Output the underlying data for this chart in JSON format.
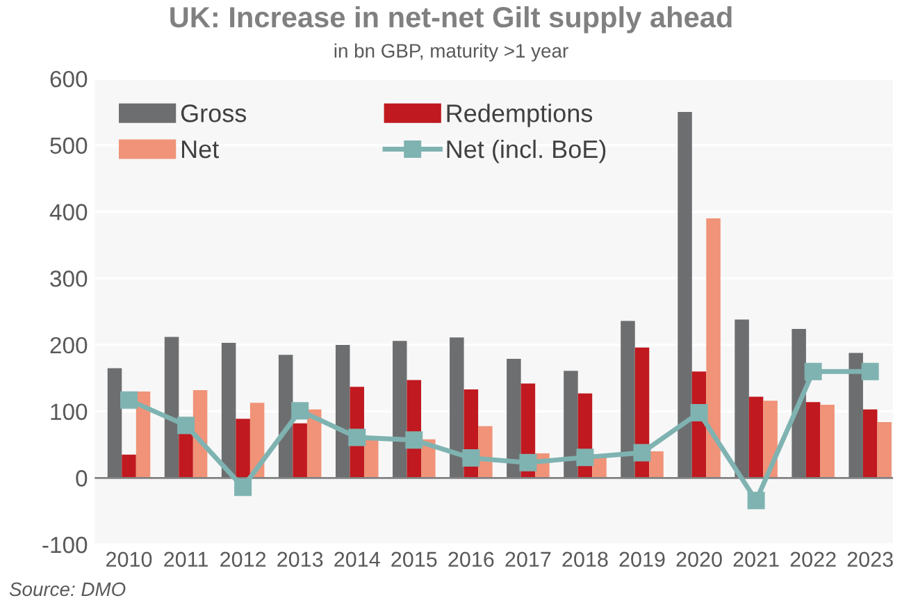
{
  "chart_data": {
    "type": "bar",
    "title": "UK: Increase in net-net Gilt supply ahead",
    "subtitle": "in bn GBP, maturity >1 year",
    "categories": [
      "2010",
      "2011",
      "2012",
      "2013",
      "2014",
      "2015",
      "2016",
      "2017",
      "2018",
      "2019",
      "2020",
      "2021",
      "2022",
      "2023"
    ],
    "series": [
      {
        "name": "Gross",
        "color": "#6d6e70",
        "values": [
          165,
          212,
          203,
          185,
          200,
          206,
          211,
          179,
          161,
          236,
          550,
          238,
          224,
          188
        ]
      },
      {
        "name": "Redemptions",
        "color": "#c0191f",
        "values": [
          35,
          68,
          89,
          82,
          137,
          147,
          133,
          142,
          127,
          196,
          160,
          122,
          114,
          103
        ]
      },
      {
        "name": "Net",
        "color": "#f09378",
        "values": [
          130,
          132,
          113,
          103,
          62,
          58,
          78,
          37,
          34,
          40,
          390,
          116,
          110,
          84
        ]
      },
      {
        "name": "Net (incl. BoE)",
        "color": "#7fb3b1",
        "type": "line",
        "marker": "square",
        "values": [
          117,
          79,
          -14,
          101,
          61,
          57,
          30,
          23,
          31,
          38,
          98,
          -34,
          160,
          160
        ]
      }
    ],
    "ylim": [
      -100,
      600
    ],
    "yticks": [
      -100,
      0,
      100,
      200,
      300,
      400,
      500,
      600
    ],
    "grid": "y",
    "legend": "top left",
    "annotations": [
      "Source: DMO"
    ]
  }
}
